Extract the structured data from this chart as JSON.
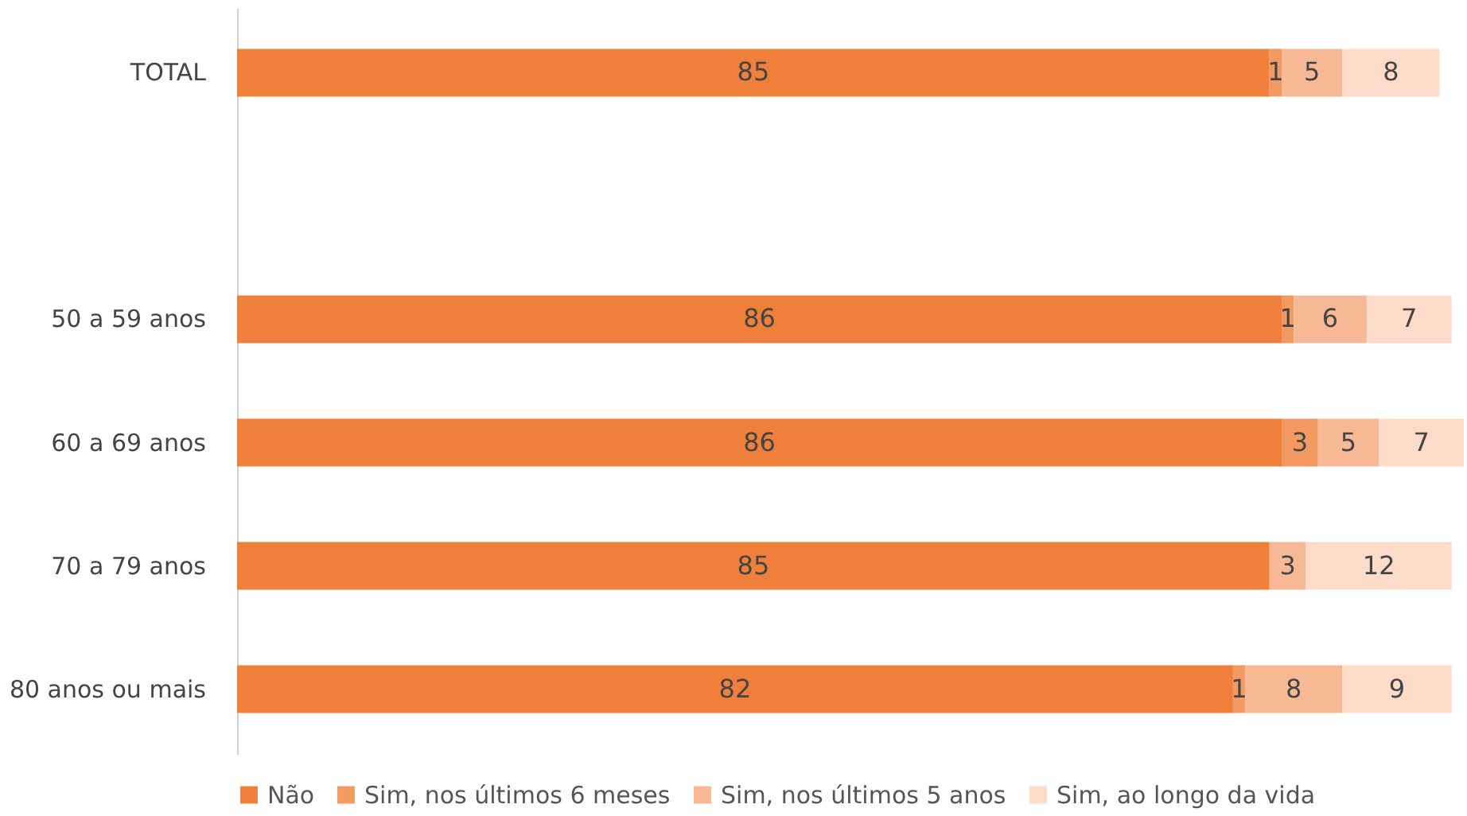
{
  "chart_data": {
    "type": "bar",
    "orientation": "horizontal",
    "stacked": true,
    "data_labels": true,
    "legend": "bottom",
    "categories": [
      "TOTAL",
      null,
      "50 a 59 anos",
      "60 a 69 anos",
      "70 a 79 anos",
      "80 anos ou mais"
    ],
    "series": [
      {
        "name": "Não",
        "color": "#f07f3c",
        "values": [
          85,
          null,
          86,
          86,
          85,
          82
        ]
      },
      {
        "name": "Sim, nos últimos 6 meses",
        "color": "#f39a63",
        "values": [
          1,
          null,
          1,
          3,
          null,
          1
        ]
      },
      {
        "name": "Sim, nos últimos 5 anos",
        "color": "#f7b995",
        "values": [
          5,
          null,
          6,
          5,
          3,
          8
        ]
      },
      {
        "name": "Sim, ao longo da vida",
        "color": "#fcdcc8",
        "values": [
          8,
          null,
          7,
          7,
          12,
          9
        ]
      }
    ]
  }
}
